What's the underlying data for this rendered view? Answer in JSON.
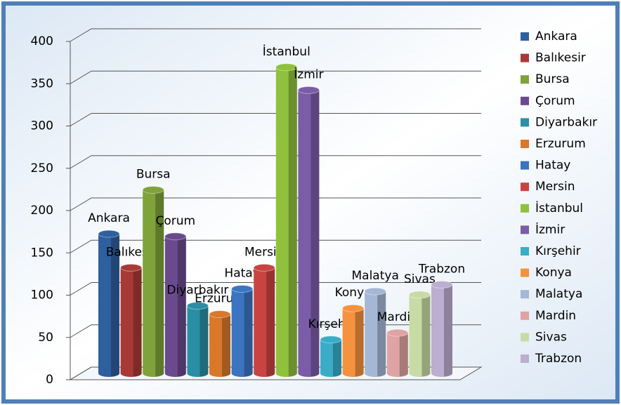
{
  "chart_data": {
    "type": "bar",
    "categories": [
      "Ankara",
      "Balıkesir",
      "Bursa",
      "Çorum",
      "Diyarbakır",
      "Erzurum",
      "Hatay",
      "Mersin",
      "İstanbul",
      "İzmir",
      "Kırşehir",
      "Konya",
      "Malatya",
      "Mardin",
      "Sivas",
      "Trabzon"
    ],
    "values": [
      165,
      125,
      217,
      162,
      80,
      70,
      100,
      125,
      362,
      335,
      40,
      77,
      97,
      48,
      93,
      105
    ],
    "colors": [
      "#2e5f9e",
      "#a83a36",
      "#7fa23a",
      "#6a4a8e",
      "#2a8fa5",
      "#d9782a",
      "#3b74c0",
      "#c94441",
      "#8fc13c",
      "#7b5ca8",
      "#3aacc8",
      "#f5923e",
      "#a4b7d6",
      "#e0a3a3",
      "#c8dba5",
      "#bcaed0"
    ],
    "ylim": [
      0,
      400
    ],
    "yticks": [
      0,
      50,
      100,
      150,
      200,
      250,
      300,
      350,
      400
    ],
    "grid": true,
    "legend": "right"
  }
}
